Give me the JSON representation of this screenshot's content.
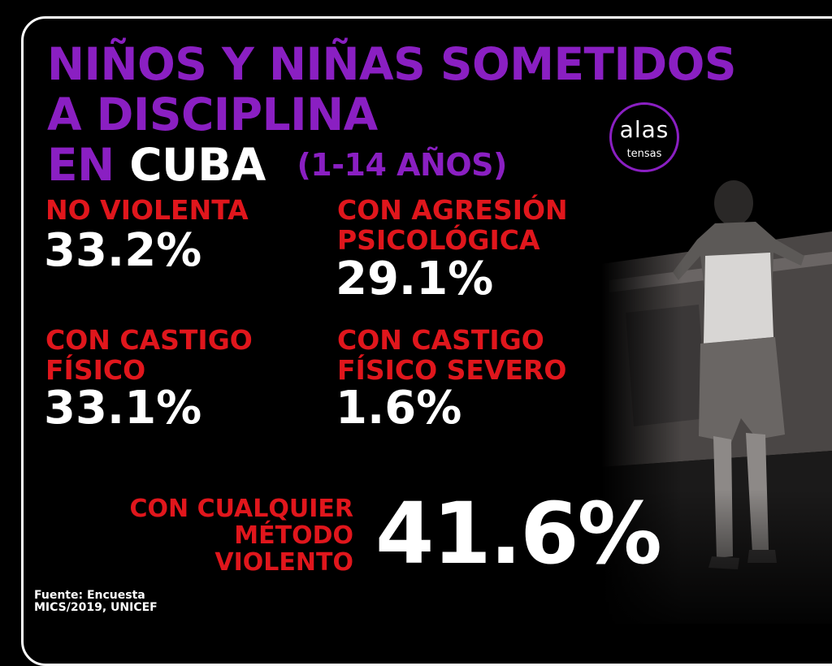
{
  "title": {
    "line1": "NIÑOS Y NIÑAS SOMETIDOS",
    "line2": "A DISCIPLINA",
    "line3_prefix": "EN",
    "line3_country": "CUBA",
    "line3_years": "(1-14 AÑOS)"
  },
  "logo": {
    "main": "alas",
    "sub": "tensas"
  },
  "stats": [
    {
      "label_lines": [
        "NO VIOLENTA"
      ],
      "value": "33.2%"
    },
    {
      "label_lines": [
        "CON AGRESIÓN",
        "PSICOLÓGICA"
      ],
      "value": "29.1%"
    },
    {
      "label_lines": [
        "CON CASTIGO",
        "FÍSICO"
      ],
      "value": "33.1%"
    },
    {
      "label_lines": [
        "CON CASTIGO",
        "FÍSICO SEVERO"
      ],
      "value": "1.6%"
    }
  ],
  "highlight": {
    "label_lines": [
      "CON CUALQUIER",
      "MÉTODO",
      "VIOLENTO"
    ],
    "value": "41.6%"
  },
  "source": {
    "line1": "Fuente: Encuesta",
    "line2": "MICS/2019, UNICEF"
  },
  "colors": {
    "purple": "#8a1fc2",
    "red": "#e0161c",
    "white": "#ffffff",
    "background": "#000000"
  }
}
